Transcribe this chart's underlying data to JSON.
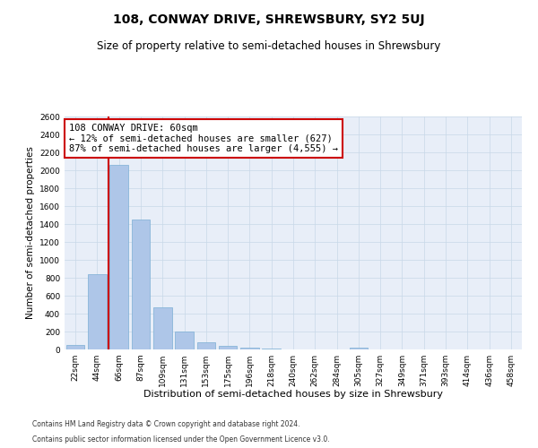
{
  "title": "108, CONWAY DRIVE, SHREWSBURY, SY2 5UJ",
  "subtitle": "Size of property relative to semi-detached houses in Shrewsbury",
  "xlabel": "Distribution of semi-detached houses by size in Shrewsbury",
  "ylabel": "Number of semi-detached properties",
  "footer1": "Contains HM Land Registry data © Crown copyright and database right 2024.",
  "footer2": "Contains public sector information licensed under the Open Government Licence v3.0.",
  "annotation_title": "108 CONWAY DRIVE: 60sqm",
  "annotation_line1": "← 12% of semi-detached houses are smaller (627)",
  "annotation_line2": "87% of semi-detached houses are larger (4,555) →",
  "bar_categories": [
    "22sqm",
    "44sqm",
    "66sqm",
    "87sqm",
    "109sqm",
    "131sqm",
    "153sqm",
    "175sqm",
    "196sqm",
    "218sqm",
    "240sqm",
    "262sqm",
    "284sqm",
    "305sqm",
    "327sqm",
    "349sqm",
    "371sqm",
    "393sqm",
    "414sqm",
    "436sqm",
    "458sqm"
  ],
  "bar_values": [
    50,
    845,
    2060,
    1450,
    470,
    200,
    85,
    40,
    25,
    15,
    0,
    0,
    0,
    20,
    0,
    0,
    0,
    0,
    0,
    0,
    0
  ],
  "bar_color": "#aec6e8",
  "bar_edge_color": "#7bafd4",
  "marker_color": "#cc0000",
  "ylim": [
    0,
    2600
  ],
  "yticks": [
    0,
    200,
    400,
    600,
    800,
    1000,
    1200,
    1400,
    1600,
    1800,
    2000,
    2200,
    2400,
    2600
  ],
  "grid_color": "#c8d8e8",
  "background_color": "#e8eef8",
  "annotation_box_color": "#ffffff",
  "annotation_box_edge": "#cc0000",
  "fig_width": 6.0,
  "fig_height": 5.0,
  "title_fontsize": 10,
  "subtitle_fontsize": 8.5,
  "xlabel_fontsize": 8,
  "ylabel_fontsize": 7.5,
  "tick_fontsize": 6.5,
  "annotation_fontsize": 7.5,
  "footer_fontsize": 5.5
}
